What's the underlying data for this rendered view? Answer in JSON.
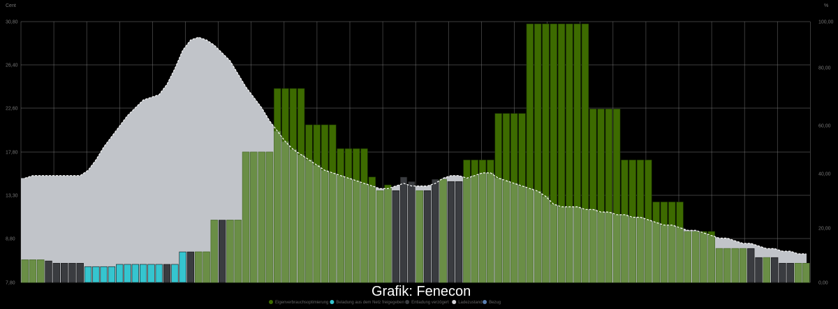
{
  "chart_data": {
    "type": "bar",
    "title": "",
    "credit": "Grafik: Fenecon",
    "y_left": {
      "unit": "Cent",
      "ticks": [
        "30,80",
        "26,40",
        "22,60",
        "17,80",
        "13,30",
        "8,80",
        "7,80"
      ],
      "ylim": [
        7.8,
        30.8
      ]
    },
    "y_right": {
      "unit": "%",
      "ticks": [
        "100,00",
        "80,00",
        "60,00",
        "40,00",
        "20,00",
        "0,00"
      ],
      "ylim": [
        0,
        100
      ]
    },
    "legend": [
      {
        "label": "Eigenverbrauchsoptimierung",
        "color": "#3d6b00"
      },
      {
        "label": "Beladung aus dem Netz freigegeben",
        "color": "#35c5cf"
      },
      {
        "label": "Entladung verzögert",
        "color": "#3a3c40"
      },
      {
        "label": "Ladezustand",
        "color": "#d4d4d8"
      },
      {
        "label": "Bezug",
        "color": "#5a7fb0"
      }
    ],
    "colors": {
      "soc_area": "#c1c4c9",
      "grid": "#8a8a8a",
      "bar_dark_green": "#3d6b00",
      "bar_light_green": "#6a8e46",
      "bar_cyan": "#35c5cf",
      "bar_black": "#3a3c40"
    },
    "price_cent": [
      9.8,
      9.8,
      9.8,
      9.7,
      9.5,
      9.5,
      9.5,
      9.5,
      9.2,
      9.2,
      9.2,
      9.2,
      9.4,
      9.4,
      9.4,
      9.4,
      9.4,
      9.4,
      9.4,
      9.4,
      10.5,
      10.5,
      10.5,
      10.5,
      13.3,
      13.3,
      13.3,
      13.3,
      19.3,
      19.3,
      19.3,
      19.3,
      24.9,
      24.9,
      24.9,
      24.9,
      21.7,
      21.7,
      21.7,
      21.7,
      19.6,
      19.6,
      19.6,
      19.6,
      17.1,
      15.9,
      16.4,
      15.9,
      17.1,
      16.7,
      15.9,
      15.9,
      16.9,
      16.9,
      16.7,
      16.7,
      18.6,
      18.6,
      18.6,
      18.6,
      22.7,
      22.7,
      22.7,
      22.7,
      30.6,
      30.6,
      30.6,
      30.6,
      30.6,
      30.6,
      30.6,
      30.6,
      23.1,
      23.1,
      23.1,
      23.1,
      18.6,
      18.6,
      18.6,
      18.6,
      14.9,
      14.9,
      14.9,
      14.9,
      12.3,
      12.3,
      12.3,
      12.3,
      10.8,
      10.8,
      10.8,
      10.8,
      10.8,
      10.0,
      10.0,
      10.0,
      9.5,
      9.5,
      9.5,
      9.5
    ],
    "mode": [
      "g",
      "g",
      "g",
      "d",
      "d",
      "d",
      "d",
      "d",
      "c",
      "c",
      "c",
      "c",
      "c",
      "c",
      "c",
      "c",
      "c",
      "c",
      "d",
      "c",
      "c",
      "d",
      "g",
      "g",
      "g",
      "d",
      "g",
      "g",
      "g",
      "g",
      "g",
      "g",
      "g",
      "g",
      "g",
      "g",
      "g",
      "g",
      "g",
      "g",
      "g",
      "g",
      "g",
      "g",
      "g",
      "g",
      "g",
      "d",
      "d",
      "d",
      "g",
      "d",
      "d",
      "g",
      "d",
      "d",
      "g",
      "g",
      "g",
      "g",
      "g",
      "g",
      "g",
      "g",
      "g",
      "g",
      "g",
      "g",
      "g",
      "g",
      "g",
      "g",
      "g",
      "g",
      "g",
      "g",
      "g",
      "g",
      "g",
      "g",
      "g",
      "g",
      "g",
      "g",
      "g",
      "g",
      "g",
      "g",
      "g",
      "g",
      "g",
      "g",
      "d",
      "d",
      "g",
      "d",
      "d",
      "d",
      "g",
      "g"
    ],
    "soc_percent": [
      [
        0,
        40
      ],
      [
        1,
        41
      ],
      [
        2,
        41
      ],
      [
        3,
        41
      ],
      [
        4,
        41
      ],
      [
        5,
        41
      ],
      [
        6,
        41
      ],
      [
        7,
        41
      ],
      [
        8,
        43
      ],
      [
        9,
        47
      ],
      [
        10,
        52
      ],
      [
        11,
        56
      ],
      [
        12,
        60
      ],
      [
        13,
        64
      ],
      [
        14,
        67
      ],
      [
        15,
        70
      ],
      [
        16,
        71
      ],
      [
        17,
        72
      ],
      [
        18,
        76
      ],
      [
        19,
        82
      ],
      [
        20,
        89
      ],
      [
        21,
        93
      ],
      [
        22,
        94
      ],
      [
        23,
        93
      ],
      [
        24,
        91
      ],
      [
        25,
        88
      ],
      [
        26,
        85
      ],
      [
        27,
        80
      ],
      [
        28,
        75
      ],
      [
        29,
        71
      ],
      [
        30,
        67
      ],
      [
        31,
        62
      ],
      [
        32,
        58
      ],
      [
        33,
        54
      ],
      [
        34,
        51
      ],
      [
        35,
        49
      ],
      [
        36,
        47
      ],
      [
        37,
        45
      ],
      [
        38,
        43
      ],
      [
        39,
        42
      ],
      [
        40,
        41
      ],
      [
        41,
        40
      ],
      [
        42,
        39
      ],
      [
        43,
        38
      ],
      [
        44,
        37
      ],
      [
        45,
        36
      ],
      [
        46,
        36
      ],
      [
        47,
        37
      ],
      [
        48,
        38
      ],
      [
        49,
        37
      ],
      [
        50,
        37
      ],
      [
        51,
        37
      ],
      [
        52,
        38
      ],
      [
        53,
        40
      ],
      [
        54,
        41
      ],
      [
        55,
        41
      ],
      [
        56,
        40
      ],
      [
        57,
        41
      ],
      [
        58,
        42
      ],
      [
        59,
        42
      ],
      [
        60,
        40
      ],
      [
        61,
        39
      ],
      [
        62,
        38
      ],
      [
        63,
        37
      ],
      [
        64,
        36
      ],
      [
        65,
        35
      ],
      [
        66,
        33
      ],
      [
        67,
        30
      ],
      [
        68,
        29
      ],
      [
        69,
        29
      ],
      [
        70,
        29
      ],
      [
        71,
        28
      ],
      [
        72,
        28
      ],
      [
        73,
        27
      ],
      [
        74,
        27
      ],
      [
        75,
        26
      ],
      [
        76,
        26
      ],
      [
        77,
        25
      ],
      [
        78,
        25
      ],
      [
        79,
        24
      ],
      [
        80,
        23
      ],
      [
        81,
        22
      ],
      [
        82,
        22
      ],
      [
        83,
        21
      ],
      [
        84,
        20
      ],
      [
        85,
        20
      ],
      [
        86,
        19
      ],
      [
        87,
        18
      ],
      [
        88,
        17
      ],
      [
        89,
        17
      ],
      [
        90,
        16
      ],
      [
        91,
        15
      ],
      [
        92,
        15
      ],
      [
        93,
        14
      ],
      [
        94,
        13
      ],
      [
        95,
        13
      ],
      [
        96,
        12
      ],
      [
        97,
        12
      ],
      [
        98,
        11
      ],
      [
        99,
        11
      ]
    ]
  }
}
